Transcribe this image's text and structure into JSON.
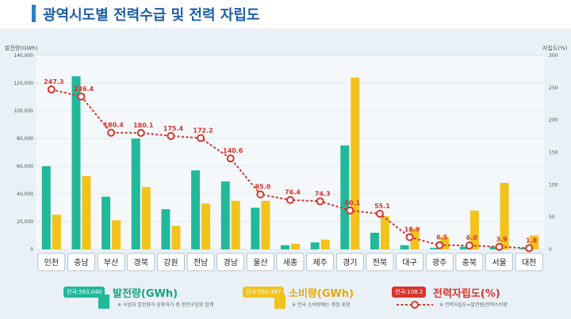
{
  "page": {
    "title": "광역시도별 전력수급 및 전력 자립도",
    "left_axis_unit": "발전량(GWh)",
    "right_axis_unit": "자립도(%)"
  },
  "colors": {
    "generation": "#22b89a",
    "consumption": "#f2c21d",
    "self_sufficiency": "#d9342b",
    "title": "#1c5ea8"
  },
  "legend": {
    "generation": {
      "badge": "전국:563,040",
      "label": "발전량(GWh)",
      "note": "※ 사업자 발전량과 상용자가 중 한전구입량 합계"
    },
    "consumption": {
      "badge": "전국:550,497",
      "label": "소비량(GWh)",
      "note": "※ 전국 소비량에는 계정 포함"
    },
    "ratio": {
      "badge": "전국:108.2",
      "label": "전력자립도(%)",
      "note": "※ 전력자립도=발전량/전력소비량"
    }
  },
  "chart_data": {
    "type": "bar+line",
    "categories": [
      "인천",
      "충남",
      "부산",
      "경북",
      "강원",
      "전남",
      "경남",
      "울산",
      "세종",
      "제주",
      "경기",
      "전북",
      "대구",
      "광주",
      "충북",
      "서울",
      "대전"
    ],
    "series": [
      {
        "name": "발전량(GWh)",
        "type": "bar",
        "axis": "left",
        "values": [
          60000,
          125000,
          38000,
          80000,
          29000,
          57000,
          49000,
          30000,
          3000,
          5000,
          75000,
          12000,
          3000,
          1000,
          2000,
          2000,
          1000
        ]
      },
      {
        "name": "소비량(GWh)",
        "type": "bar",
        "axis": "left",
        "values": [
          25000,
          53000,
          21000,
          45000,
          17000,
          33000,
          35000,
          35000,
          4000,
          7000,
          124000,
          24000,
          15000,
          9000,
          28000,
          48000,
          10000
        ]
      },
      {
        "name": "전력자립도(%)",
        "type": "line",
        "axis": "right",
        "values": [
          247.3,
          236.4,
          180.4,
          180.1,
          175.4,
          172.2,
          140.6,
          85.0,
          76.4,
          74.3,
          60.1,
          55.1,
          18.9,
          6.5,
          6.0,
          3.9,
          1.8
        ]
      }
    ],
    "left_axis": {
      "min": 0,
      "max": 140000,
      "ticks": [
        "0",
        "20,000",
        "40,000",
        "60,000",
        "80,000",
        "100,000",
        "120,000",
        "140,000"
      ]
    },
    "right_axis": {
      "min": 0,
      "max": 300,
      "ticks": [
        "0",
        "50",
        "100",
        "150",
        "200",
        "250",
        "300"
      ]
    },
    "line_labels": [
      "247.3",
      "236.4",
      "180.4",
      "180.1",
      "175.4",
      "172.2",
      "140.6",
      "85.0",
      "76.4",
      "74.3",
      "60.1",
      "55.1",
      "18.9",
      "6.5",
      "6.0",
      "3.9",
      "1.8"
    ],
    "grid": true
  }
}
